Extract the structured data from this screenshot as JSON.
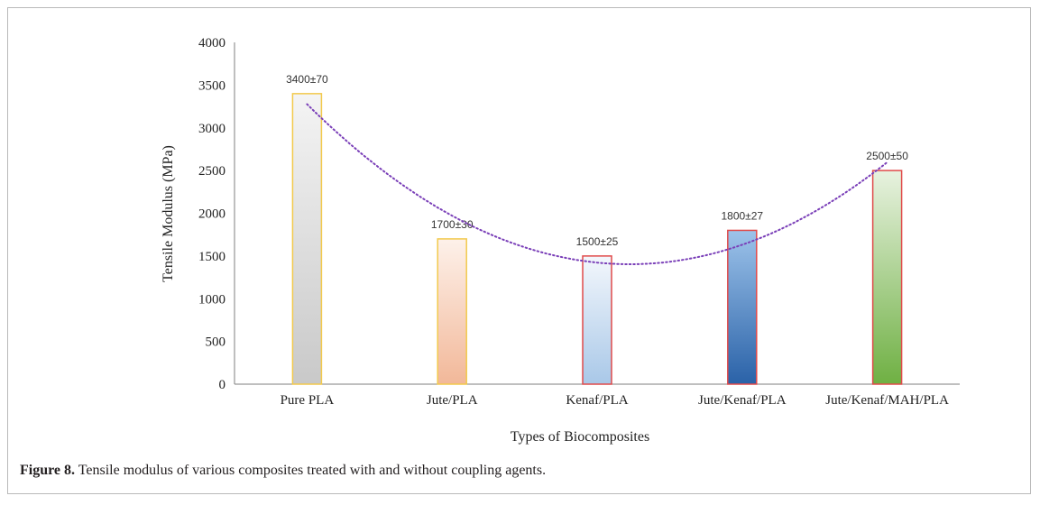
{
  "chart_data": {
    "type": "bar",
    "categories": [
      "Pure PLA",
      "Jute/PLA",
      "Kenaf/PLA",
      "Jute/Kenaf/PLA",
      "Jute/Kenaf/MAH/PLA"
    ],
    "values": [
      3400,
      1700,
      1500,
      1800,
      2500
    ],
    "data_labels": [
      "3400±70",
      "1700±30",
      "1500±25",
      "1800±27",
      "2500±50"
    ],
    "bar_fills": [
      {
        "top": "#f4f4f4",
        "bottom": "#c9c9c9",
        "outline": "#f2c94c"
      },
      {
        "top": "#fdf1ea",
        "bottom": "#f2b899",
        "outline": "#f2c94c"
      },
      {
        "top": "#f3f7fc",
        "bottom": "#a9c8e8",
        "outline": "#e04a4a"
      },
      {
        "top": "#9dc3ea",
        "bottom": "#2a62a8",
        "outline": "#e04a4a"
      },
      {
        "top": "#e8f2e0",
        "bottom": "#6fb043",
        "outline": "#e04a4a"
      }
    ],
    "trendline": {
      "type": "polynomial",
      "color": "#7a3fb8",
      "style": "dotted"
    },
    "xlabel": "Types of Biocomposites",
    "ylabel": "Tensile Modulus (MPa)",
    "ylim": [
      0,
      4000
    ],
    "yticks": [
      0,
      500,
      1000,
      1500,
      2000,
      2500,
      3000,
      3500,
      4000
    ],
    "grid": false,
    "legend": "none"
  },
  "caption": {
    "label": "Figure 8.",
    "text": " Tensile modulus of various composites treated with and without coupling agents."
  }
}
